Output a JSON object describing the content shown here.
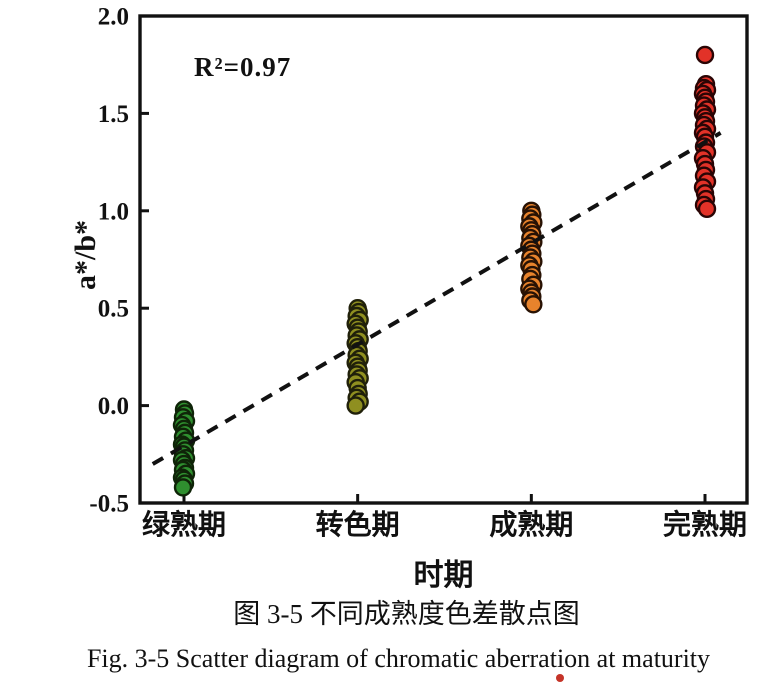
{
  "figure": {
    "caption_zh": "图 3-5  不同成熟度色差散点图",
    "caption_en": "Fig. 3-5 Scatter diagram of chromatic aberration at maturity"
  },
  "chart_data": {
    "type": "scatter",
    "title": "",
    "xlabel": "时期",
    "ylabel": "a*/b*",
    "annotation": "R²=0.97",
    "grid": false,
    "legend": "none",
    "ylim": [
      -0.5,
      2.0
    ],
    "y_tick_labels": [
      "2.0",
      "1.5",
      "1.0",
      "0.5",
      "0.0",
      "-0.5"
    ],
    "y_tick_values": [
      2.0,
      1.5,
      1.0,
      0.5,
      0.0,
      -0.5
    ],
    "x_categories": [
      "绿熟期",
      "转色期",
      "成熟期",
      "完熟期"
    ],
    "series": [
      {
        "name": "绿熟期",
        "category_index": 1,
        "color": "#2f8f2f",
        "edge_color": "#0f2408",
        "values": [
          -0.02,
          -0.04,
          -0.06,
          -0.08,
          -0.1,
          -0.12,
          -0.14,
          -0.16,
          -0.18,
          -0.2,
          -0.21,
          -0.23,
          -0.25,
          -0.27,
          -0.28,
          -0.3,
          -0.32,
          -0.33,
          -0.35,
          -0.37,
          -0.38,
          -0.4,
          -0.42
        ]
      },
      {
        "name": "转色期",
        "category_index": 2,
        "color": "#8f8f20",
        "edge_color": "#20200a",
        "values": [
          0.5,
          0.48,
          0.46,
          0.44,
          0.42,
          0.4,
          0.38,
          0.36,
          0.34,
          0.32,
          0.3,
          0.28,
          0.26,
          0.24,
          0.22,
          0.2,
          0.18,
          0.16,
          0.14,
          0.12,
          0.09,
          0.06,
          0.04,
          0.02,
          0.0
        ]
      },
      {
        "name": "成熟期",
        "category_index": 3,
        "color": "#e8832c",
        "edge_color": "#281204",
        "values": [
          1.0,
          0.98,
          0.96,
          0.94,
          0.92,
          0.9,
          0.88,
          0.86,
          0.84,
          0.82,
          0.8,
          0.78,
          0.76,
          0.74,
          0.72,
          0.7,
          0.67,
          0.65,
          0.62,
          0.6,
          0.58,
          0.56,
          0.54,
          0.52
        ]
      },
      {
        "name": "完熟期",
        "category_index": 4,
        "color": "#e23228",
        "edge_color": "#2a0505",
        "values": [
          1.8,
          1.65,
          1.63,
          1.62,
          1.6,
          1.58,
          1.56,
          1.54,
          1.52,
          1.5,
          1.48,
          1.46,
          1.44,
          1.42,
          1.4,
          1.38,
          1.35,
          1.33,
          1.3,
          1.27,
          1.24,
          1.21,
          1.18,
          1.15,
          1.12,
          1.09,
          1.06,
          1.03,
          1.01
        ]
      }
    ],
    "trendline": {
      "style": "dashed",
      "color": "#111111",
      "x1_cat": 0.82,
      "y1": -0.3,
      "x2_cat": 4.09,
      "y2": 1.4
    }
  },
  "stray_mark": {
    "color": "#c53428"
  }
}
